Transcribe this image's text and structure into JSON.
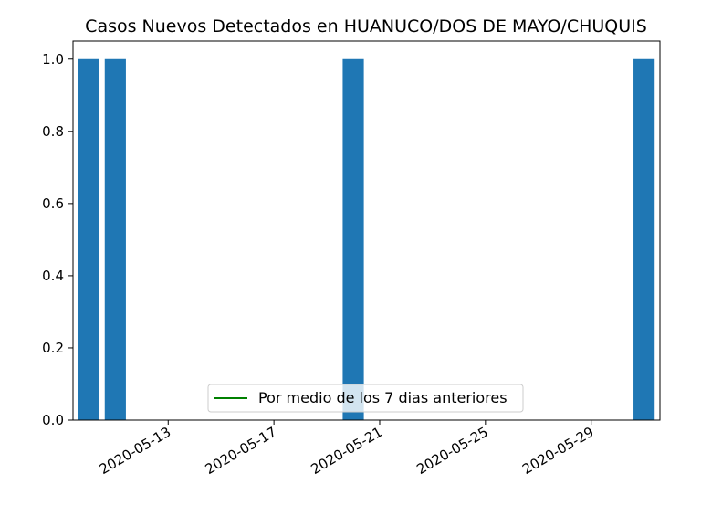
{
  "chart_data": {
    "type": "bar",
    "title": "Casos Nuevos Detectados en HUANUCO/DOS DE MAYO/CHUQUIS",
    "xlabel": "",
    "ylabel": "",
    "x": [
      "2020-05-10",
      "2020-05-11",
      "2020-05-20",
      "2020-05-31"
    ],
    "values": [
      1,
      1,
      1,
      1
    ],
    "xlim": [
      "2020-05-10",
      "2020-05-31"
    ],
    "ylim": [
      0,
      1.05
    ],
    "yticks": [
      0.0,
      0.2,
      0.4,
      0.6,
      0.8,
      1.0
    ],
    "yticklabels": [
      "0.0",
      "0.2",
      "0.4",
      "0.6",
      "0.8",
      "1.0"
    ],
    "xticks": [
      "2020-05-13",
      "2020-05-17",
      "2020-05-21",
      "2020-05-25",
      "2020-05-29"
    ],
    "xticklabels": [
      "2020-05-13",
      "2020-05-17",
      "2020-05-21",
      "2020-05-25",
      "2020-05-29"
    ],
    "bar_color": "#1f77b4",
    "series": [
      {
        "name": "Por medio de los 7 dias anteriores",
        "type": "line",
        "color": "#008000"
      }
    ],
    "legend_position": "bottom-center",
    "grid": false
  }
}
